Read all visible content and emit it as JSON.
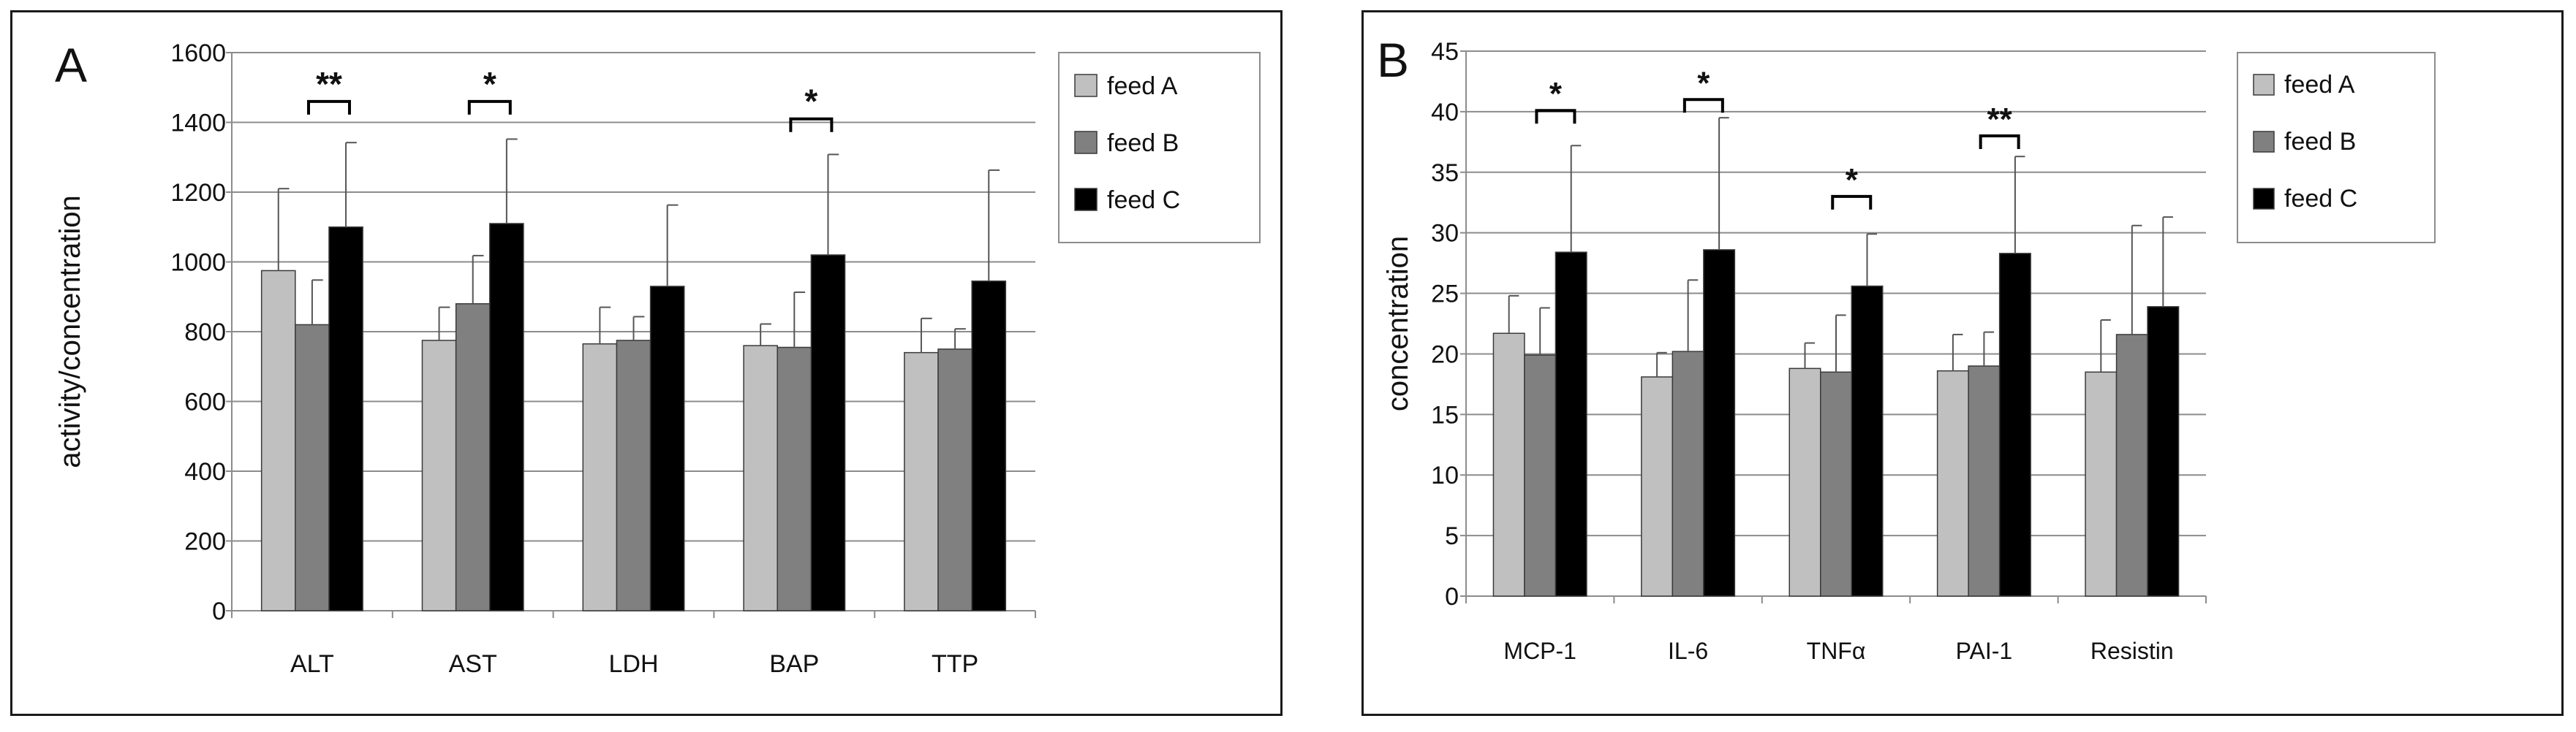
{
  "chart_data": [
    {
      "type": "bar",
      "panel_label": "A",
      "categories": [
        "ALT",
        "AST",
        "LDH",
        "BAP",
        "TTP"
      ],
      "series": [
        {
          "name": "feed A",
          "color": "#c0c0c0",
          "values": [
            975,
            775,
            765,
            760,
            740
          ],
          "error": [
            235,
            95,
            105,
            62,
            98
          ]
        },
        {
          "name": "feed B",
          "color": "#808080",
          "values": [
            820,
            880,
            775,
            755,
            750
          ],
          "error": [
            128,
            138,
            68,
            158,
            58
          ]
        },
        {
          "name": "feed C",
          "color": "#000000",
          "values": [
            1100,
            1110,
            930,
            1020,
            945
          ],
          "error": [
            242,
            242,
            233,
            288,
            318
          ]
        }
      ],
      "xlabel": "",
      "ylabel": "activity/concentration",
      "ylim": [
        0,
        1600
      ],
      "yticks": [
        0,
        200,
        400,
        600,
        800,
        1000,
        1200,
        1400,
        1600
      ],
      "grid": true,
      "legend": "top-right",
      "annotations": [
        {
          "category": "ALT",
          "text": "**",
          "bracket_level": 1460
        },
        {
          "category": "AST",
          "text": "*",
          "bracket_level": 1460
        },
        {
          "category": "BAP",
          "text": "*",
          "bracket_level": 1410
        }
      ]
    },
    {
      "type": "bar",
      "panel_label": "B",
      "categories": [
        "MCP-1",
        "IL-6",
        "TNFα",
        "PAI-1",
        "Resistin"
      ],
      "series": [
        {
          "name": "feed A",
          "color": "#c0c0c0",
          "values": [
            21.7,
            18.1,
            18.8,
            18.6,
            18.5
          ],
          "error": [
            3.1,
            2.0,
            2.1,
            3.0,
            4.3
          ]
        },
        {
          "name": "feed B",
          "color": "#808080",
          "values": [
            19.9,
            20.2,
            18.5,
            19.0,
            21.6
          ],
          "error": [
            3.9,
            5.9,
            4.7,
            2.8,
            9.0
          ]
        },
        {
          "name": "feed C",
          "color": "#000000",
          "values": [
            28.4,
            28.6,
            25.6,
            28.3,
            23.9
          ],
          "error": [
            8.8,
            10.9,
            4.3,
            8.0,
            7.4
          ]
        }
      ],
      "xlabel": "",
      "ylabel": "concentration",
      "ylim": [
        0,
        45
      ],
      "yticks": [
        0,
        5,
        10,
        15,
        20,
        25,
        30,
        35,
        40,
        45
      ],
      "grid": true,
      "legend": "top-right",
      "annotations": [
        {
          "category": "MCP-1",
          "text": "*",
          "bracket_level": 40.1
        },
        {
          "category": "IL-6",
          "text": "*",
          "bracket_level": 41.0
        },
        {
          "category": "TNFα",
          "text": "*",
          "bracket_level": 33.0
        },
        {
          "category": "PAI-1",
          "text": "**",
          "bracket_level": 38.0
        }
      ]
    }
  ]
}
